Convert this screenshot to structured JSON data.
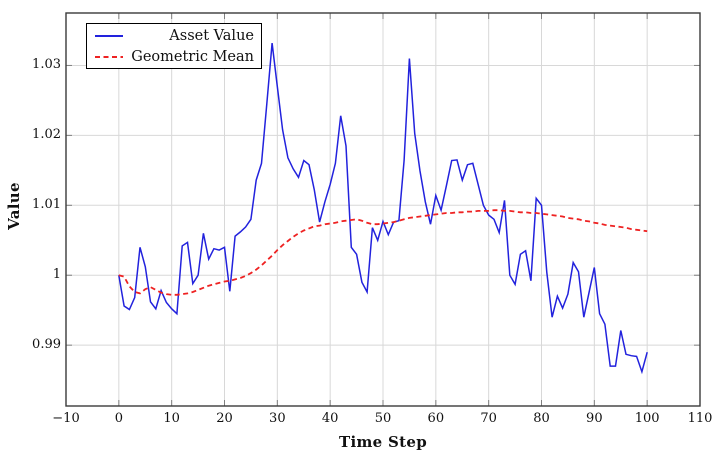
{
  "chart_data": {
    "type": "line",
    "title": "",
    "xlabel": "Time Step",
    "ylabel": "Value",
    "grid": true,
    "legend_position": "top-left",
    "xlim": [
      -10,
      110
    ],
    "ylim": [
      0.9813,
      1.0375
    ],
    "x_ticks": [
      -10,
      0,
      10,
      20,
      30,
      40,
      50,
      60,
      70,
      80,
      90,
      100,
      110
    ],
    "x_tick_labels": [
      "−10",
      "0",
      "10",
      "20",
      "30",
      "40",
      "50",
      "60",
      "70",
      "80",
      "90",
      "100",
      "110"
    ],
    "y_ticks": [
      0.99,
      1,
      1.01,
      1.02,
      1.03
    ],
    "y_tick_labels": [
      "0.99",
      "1",
      "1.01",
      "1.02",
      "1.03"
    ],
    "grid_color": "#d8d8d8",
    "frame_color": "#3a3a3a",
    "tick_color": "#808080",
    "x_values": [
      0,
      1,
      2,
      3,
      4,
      5,
      6,
      7,
      8,
      9,
      10,
      11,
      12,
      13,
      14,
      15,
      16,
      17,
      18,
      19,
      20,
      21,
      22,
      23,
      24,
      25,
      26,
      27,
      28,
      29,
      30,
      31,
      32,
      33,
      34,
      35,
      36,
      37,
      38,
      39,
      40,
      41,
      42,
      43,
      44,
      45,
      46,
      47,
      48,
      49,
      50,
      51,
      52,
      53,
      54,
      55,
      56,
      57,
      58,
      59,
      60,
      61,
      62,
      63,
      64,
      65,
      66,
      67,
      68,
      69,
      70,
      71,
      72,
      73,
      74,
      75,
      76,
      77,
      78,
      79,
      80,
      81,
      82,
      83,
      84,
      85,
      86,
      87,
      88,
      89,
      90,
      91,
      92,
      93,
      94,
      95,
      96,
      97,
      98,
      99,
      100
    ],
    "series": [
      {
        "name": "Asset Value",
        "color": "#2222dd",
        "style": "solid",
        "line_width": 1.5,
        "values": [
          1.0,
          0.9956,
          0.9951,
          0.9968,
          1.004,
          1.0012,
          0.9962,
          0.9952,
          0.9978,
          0.9961,
          0.9952,
          0.9945,
          1.0042,
          1.0047,
          0.9988,
          1.0,
          1.006,
          1.0023,
          1.0038,
          1.0036,
          1.004,
          0.9977,
          1.0056,
          1.0062,
          1.0069,
          1.008,
          1.0136,
          1.016,
          1.0245,
          1.0332,
          1.027,
          1.0208,
          1.0168,
          1.0152,
          1.014,
          1.0164,
          1.0158,
          1.0122,
          1.0076,
          1.0105,
          1.013,
          1.016,
          1.0228,
          1.0185,
          1.004,
          1.003,
          0.999,
          0.9976,
          1.0068,
          1.005,
          1.0077,
          1.0058,
          1.0076,
          1.0078,
          1.0164,
          1.031,
          1.0203,
          1.0149,
          1.0105,
          1.0073,
          1.0114,
          1.0093,
          1.0128,
          1.0164,
          1.0165,
          1.0136,
          1.0158,
          1.016,
          1.013,
          1.01,
          1.0086,
          1.008,
          1.0061,
          1.0107,
          1.0,
          0.9987,
          1.003,
          1.0035,
          0.9992,
          1.011,
          1.01,
          1.0004,
          0.994,
          0.997,
          0.9953,
          0.9973,
          1.0018,
          1.0005,
          0.994,
          0.9975,
          1.0011,
          0.9945,
          0.993,
          0.987,
          0.987,
          0.9921,
          0.9887,
          0.9885,
          0.9884,
          0.9862,
          0.989
        ]
      },
      {
        "name": "Geometric Mean",
        "color": "#ee2222",
        "style": "dashed",
        "line_width": 1.8,
        "values": [
          1.0,
          0.9998,
          0.9984,
          0.9976,
          0.9974,
          0.998,
          0.9983,
          0.9979,
          0.9975,
          0.9973,
          0.9972,
          0.9972,
          0.9973,
          0.9974,
          0.9976,
          0.9979,
          0.9982,
          0.9985,
          0.9987,
          0.9989,
          0.9991,
          0.9992,
          0.9994,
          0.9996,
          0.9999,
          1.0003,
          1.0008,
          1.0014,
          1.0021,
          1.0028,
          1.0036,
          1.0043,
          1.0049,
          1.0055,
          1.006,
          1.0064,
          1.0067,
          1.007,
          1.0071,
          1.0073,
          1.0074,
          1.0075,
          1.0077,
          1.0078,
          1.0079,
          1.008,
          1.0078,
          1.0075,
          1.0073,
          1.0073,
          1.0074,
          1.0075,
          1.0076,
          1.0078,
          1.008,
          1.0082,
          1.0083,
          1.0084,
          1.0085,
          1.0086,
          1.0087,
          1.0088,
          1.0089,
          1.0089,
          1.009,
          1.009,
          1.0091,
          1.0091,
          1.0092,
          1.0092,
          1.0092,
          1.0093,
          1.0093,
          1.0092,
          1.0092,
          1.0091,
          1.009,
          1.009,
          1.0089,
          1.0089,
          1.0088,
          1.0087,
          1.0086,
          1.0085,
          1.0084,
          1.0082,
          1.0081,
          1.008,
          1.0078,
          1.0077,
          1.0075,
          1.0074,
          1.0072,
          1.0071,
          1.007,
          1.0069,
          1.0068,
          1.0066,
          1.0065,
          1.0064,
          1.0063
        ]
      }
    ]
  }
}
